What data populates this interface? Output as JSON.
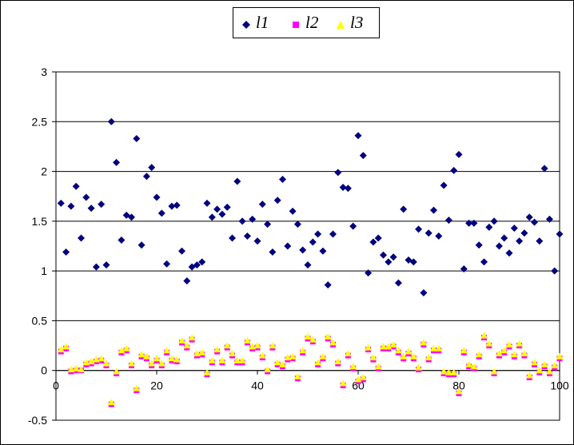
{
  "chart_data": {
    "type": "scatter",
    "title": "",
    "xlabel": "",
    "ylabel": "",
    "xlim": [
      0,
      100
    ],
    "ylim": [
      -0.5,
      3
    ],
    "x_ticks": [
      "0",
      "20",
      "40",
      "60",
      "80",
      "100"
    ],
    "y_ticks": [
      "3",
      "2.5",
      "2",
      "1.5",
      "1",
      "0.5",
      "0",
      "-0.5"
    ],
    "grid": "horizontal",
    "legend_position": "top",
    "series": [
      {
        "name": "l1",
        "color": "#00007f",
        "marker": "diamond",
        "points": [
          [
            1,
            1.68
          ],
          [
            2,
            1.19
          ],
          [
            3,
            1.65
          ],
          [
            4,
            1.85
          ],
          [
            5,
            1.33
          ],
          [
            6,
            1.74
          ],
          [
            7,
            1.63
          ],
          [
            8,
            1.04
          ],
          [
            9,
            1.67
          ],
          [
            10,
            1.06
          ],
          [
            11,
            2.5
          ],
          [
            12,
            2.09
          ],
          [
            13,
            1.31
          ],
          [
            14,
            1.56
          ],
          [
            15,
            1.54
          ],
          [
            16,
            2.33
          ],
          [
            17,
            1.26
          ],
          [
            18,
            1.95
          ],
          [
            19,
            2.04
          ],
          [
            20,
            1.74
          ],
          [
            21,
            1.58
          ],
          [
            22,
            1.07
          ],
          [
            23,
            1.65
          ],
          [
            24,
            1.66
          ],
          [
            25,
            1.2
          ],
          [
            26,
            0.9
          ],
          [
            27,
            1.04
          ],
          [
            28,
            1.06
          ],
          [
            29,
            1.09
          ],
          [
            30,
            1.68
          ],
          [
            31,
            1.54
          ],
          [
            32,
            1.62
          ],
          [
            33,
            1.57
          ],
          [
            34,
            1.64
          ],
          [
            35,
            1.33
          ],
          [
            36,
            1.9
          ],
          [
            37,
            1.5
          ],
          [
            38,
            1.35
          ],
          [
            39,
            1.52
          ],
          [
            40,
            1.3
          ],
          [
            41,
            1.67
          ],
          [
            42,
            1.47
          ],
          [
            43,
            1.19
          ],
          [
            44,
            1.71
          ],
          [
            45,
            1.92
          ],
          [
            46,
            1.25
          ],
          [
            47,
            1.6
          ],
          [
            48,
            1.47
          ],
          [
            49,
            1.21
          ],
          [
            50,
            1.06
          ],
          [
            51,
            1.29
          ],
          [
            52,
            1.37
          ],
          [
            53,
            1.2
          ],
          [
            54,
            0.86
          ],
          [
            55,
            1.37
          ],
          [
            56,
            1.99
          ],
          [
            57,
            1.84
          ],
          [
            58,
            1.83
          ],
          [
            59,
            1.45
          ],
          [
            60,
            2.36
          ],
          [
            61,
            2.16
          ],
          [
            62,
            0.98
          ],
          [
            63,
            1.29
          ],
          [
            64,
            1.33
          ],
          [
            65,
            1.16
          ],
          [
            66,
            1.09
          ],
          [
            67,
            1.14
          ],
          [
            68,
            0.88
          ],
          [
            69,
            1.62
          ],
          [
            70,
            1.11
          ],
          [
            71,
            1.09
          ],
          [
            72,
            1.42
          ],
          [
            73,
            0.78
          ],
          [
            74,
            1.38
          ],
          [
            75,
            1.61
          ],
          [
            76,
            1.35
          ],
          [
            77,
            1.86
          ],
          [
            78,
            1.51
          ],
          [
            79,
            2.01
          ],
          [
            80,
            2.17
          ],
          [
            81,
            1.02
          ],
          [
            82,
            1.48
          ],
          [
            83,
            1.48
          ],
          [
            84,
            1.26
          ],
          [
            85,
            1.09
          ],
          [
            86,
            1.44
          ],
          [
            87,
            1.5
          ],
          [
            88,
            1.25
          ],
          [
            89,
            1.33
          ],
          [
            90,
            1.18
          ],
          [
            91,
            1.43
          ],
          [
            92,
            1.3
          ],
          [
            93,
            1.38
          ],
          [
            94,
            1.54
          ],
          [
            95,
            1.49
          ],
          [
            96,
            1.3
          ],
          [
            97,
            2.03
          ],
          [
            98,
            1.52
          ],
          [
            99,
            1.0
          ],
          [
            100,
            1.37
          ]
        ]
      },
      {
        "name": "l2",
        "color": "#ff00ff",
        "marker": "square",
        "points": [
          [
            1,
            0.19
          ],
          [
            2,
            0.22
          ],
          [
            3,
            -0.01
          ],
          [
            4,
            0.0
          ],
          [
            5,
            0.0
          ],
          [
            6,
            0.06
          ],
          [
            7,
            0.07
          ],
          [
            8,
            0.09
          ],
          [
            9,
            0.1
          ],
          [
            10,
            0.05
          ],
          [
            11,
            -0.34
          ],
          [
            12,
            -0.03
          ],
          [
            13,
            0.18
          ],
          [
            14,
            0.2
          ],
          [
            15,
            0.05
          ],
          [
            16,
            -0.2
          ],
          [
            17,
            0.14
          ],
          [
            18,
            0.12
          ],
          [
            19,
            0.05
          ],
          [
            20,
            0.1
          ],
          [
            21,
            0.05
          ],
          [
            22,
            0.18
          ],
          [
            23,
            0.1
          ],
          [
            24,
            0.09
          ],
          [
            25,
            0.28
          ],
          [
            26,
            0.23
          ],
          [
            27,
            0.31
          ],
          [
            28,
            0.15
          ],
          [
            29,
            0.16
          ],
          [
            30,
            -0.04
          ],
          [
            31,
            0.08
          ],
          [
            32,
            0.19
          ],
          [
            33,
            0.08
          ],
          [
            34,
            0.23
          ],
          [
            35,
            0.15
          ],
          [
            36,
            0.08
          ],
          [
            37,
            0.08
          ],
          [
            38,
            0.28
          ],
          [
            39,
            0.22
          ],
          [
            40,
            0.23
          ],
          [
            41,
            0.13
          ],
          [
            42,
            -0.01
          ],
          [
            43,
            0.23
          ],
          [
            44,
            0.06
          ],
          [
            45,
            0.04
          ],
          [
            46,
            0.11
          ],
          [
            47,
            0.12
          ],
          [
            48,
            -0.08
          ],
          [
            49,
            0.18
          ],
          [
            50,
            0.32
          ],
          [
            51,
            0.29
          ],
          [
            52,
            0.06
          ],
          [
            53,
            0.12
          ],
          [
            54,
            0.32
          ],
          [
            55,
            0.26
          ],
          [
            56,
            0.07
          ],
          [
            57,
            -0.15
          ],
          [
            58,
            0.15
          ],
          [
            59,
            0.02
          ],
          [
            60,
            -0.11
          ],
          [
            61,
            -0.09
          ],
          [
            62,
            0.21
          ],
          [
            63,
            0.11
          ],
          [
            64,
            0.02
          ],
          [
            65,
            0.22
          ],
          [
            66,
            0.22
          ],
          [
            67,
            0.24
          ],
          [
            68,
            0.18
          ],
          [
            69,
            0.12
          ],
          [
            70,
            0.17
          ],
          [
            71,
            0.12
          ],
          [
            72,
            0.01
          ],
          [
            73,
            0.26
          ],
          [
            74,
            0.11
          ],
          [
            75,
            0.2
          ],
          [
            76,
            0.2
          ],
          [
            77,
            -0.03
          ],
          [
            78,
            -0.04
          ],
          [
            79,
            -0.04
          ],
          [
            80,
            -0.23
          ],
          [
            81,
            0.18
          ],
          [
            82,
            0.04
          ],
          [
            83,
            0.02
          ],
          [
            84,
            0.14
          ],
          [
            85,
            0.33
          ],
          [
            86,
            0.25
          ],
          [
            87,
            -0.03
          ],
          [
            88,
            0.15
          ],
          [
            89,
            0.18
          ],
          [
            90,
            0.24
          ],
          [
            91,
            0.14
          ],
          [
            92,
            0.25
          ],
          [
            93,
            0.15
          ],
          [
            94,
            -0.07
          ],
          [
            95,
            0.06
          ],
          [
            96,
            -0.02
          ],
          [
            97,
            0.04
          ],
          [
            98,
            -0.03
          ],
          [
            99,
            0.03
          ],
          [
            100,
            0.12
          ]
        ]
      },
      {
        "name": "l3",
        "color": "#ffff00",
        "marker": "triangle",
        "points": [
          [
            1,
            0.21
          ],
          [
            2,
            0.24
          ],
          [
            3,
            0.01
          ],
          [
            4,
            0.02
          ],
          [
            5,
            0.01
          ],
          [
            6,
            0.08
          ],
          [
            7,
            0.09
          ],
          [
            8,
            0.11
          ],
          [
            9,
            0.12
          ],
          [
            10,
            0.07
          ],
          [
            11,
            -0.32
          ],
          [
            12,
            -0.01
          ],
          [
            13,
            0.2
          ],
          [
            14,
            0.22
          ],
          [
            15,
            0.07
          ],
          [
            16,
            -0.18
          ],
          [
            17,
            0.16
          ],
          [
            18,
            0.14
          ],
          [
            19,
            0.07
          ],
          [
            20,
            0.12
          ],
          [
            21,
            0.07
          ],
          [
            22,
            0.2
          ],
          [
            23,
            0.12
          ],
          [
            24,
            0.11
          ],
          [
            25,
            0.3
          ],
          [
            26,
            0.25
          ],
          [
            27,
            0.33
          ],
          [
            28,
            0.17
          ],
          [
            29,
            0.18
          ],
          [
            30,
            -0.02
          ],
          [
            31,
            0.1
          ],
          [
            32,
            0.21
          ],
          [
            33,
            0.1
          ],
          [
            34,
            0.25
          ],
          [
            35,
            0.17
          ],
          [
            36,
            0.1
          ],
          [
            37,
            0.1
          ],
          [
            38,
            0.3
          ],
          [
            39,
            0.24
          ],
          [
            40,
            0.25
          ],
          [
            41,
            0.15
          ],
          [
            42,
            0.01
          ],
          [
            43,
            0.25
          ],
          [
            44,
            0.08
          ],
          [
            45,
            0.06
          ],
          [
            46,
            0.13
          ],
          [
            47,
            0.14
          ],
          [
            48,
            -0.06
          ],
          [
            49,
            0.2
          ],
          [
            50,
            0.34
          ],
          [
            51,
            0.31
          ],
          [
            52,
            0.08
          ],
          [
            53,
            0.14
          ],
          [
            54,
            0.34
          ],
          [
            55,
            0.28
          ],
          [
            56,
            0.09
          ],
          [
            57,
            -0.13
          ],
          [
            58,
            0.17
          ],
          [
            59,
            0.04
          ],
          [
            60,
            -0.09
          ],
          [
            61,
            -0.07
          ],
          [
            62,
            0.23
          ],
          [
            63,
            0.13
          ],
          [
            64,
            0.04
          ],
          [
            65,
            0.24
          ],
          [
            66,
            0.24
          ],
          [
            67,
            0.26
          ],
          [
            68,
            0.2
          ],
          [
            69,
            0.14
          ],
          [
            70,
            0.19
          ],
          [
            71,
            0.14
          ],
          [
            72,
            0.03
          ],
          [
            73,
            0.28
          ],
          [
            74,
            0.13
          ],
          [
            75,
            0.22
          ],
          [
            76,
            0.22
          ],
          [
            77,
            -0.01
          ],
          [
            78,
            -0.02
          ],
          [
            79,
            -0.02
          ],
          [
            80,
            -0.21
          ],
          [
            81,
            0.2
          ],
          [
            82,
            0.06
          ],
          [
            83,
            0.04
          ],
          [
            84,
            0.16
          ],
          [
            85,
            0.35
          ],
          [
            86,
            0.27
          ],
          [
            87,
            -0.01
          ],
          [
            88,
            0.17
          ],
          [
            89,
            0.2
          ],
          [
            90,
            0.26
          ],
          [
            91,
            0.16
          ],
          [
            92,
            0.27
          ],
          [
            93,
            0.17
          ],
          [
            94,
            -0.05
          ],
          [
            95,
            0.08
          ],
          [
            96,
            0.0
          ],
          [
            97,
            0.06
          ],
          [
            98,
            -0.01
          ],
          [
            99,
            0.05
          ],
          [
            100,
            0.14
          ]
        ]
      }
    ]
  }
}
